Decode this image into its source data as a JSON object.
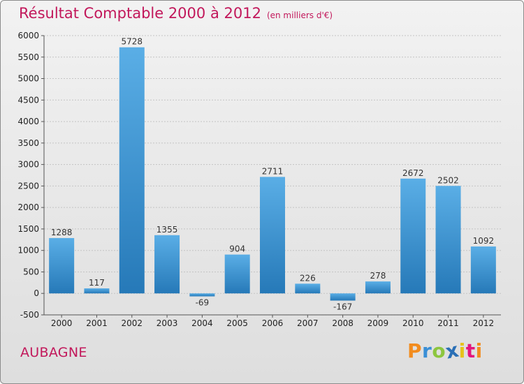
{
  "chart_data": {
    "type": "bar",
    "title": "Résultat Comptable 2000 à 2012",
    "subtitle": "(en milliers d'€)",
    "categories": [
      "2000",
      "2001",
      "2002",
      "2003",
      "2004",
      "2005",
      "2006",
      "2007",
      "2008",
      "2009",
      "2010",
      "2011",
      "2012"
    ],
    "values": [
      1288,
      117,
      5728,
      1355,
      -69,
      904,
      2711,
      226,
      -167,
      278,
      2672,
      2502,
      1092
    ],
    "ylim": [
      -500,
      6000
    ],
    "yticks": [
      -500,
      0,
      500,
      1000,
      1500,
      2000,
      2500,
      3000,
      3500,
      4000,
      4500,
      5000,
      5500,
      6000
    ],
    "xlabel": "",
    "ylabel": "",
    "grid": true,
    "bar_color_top": "#5aaee6",
    "bar_color_bottom": "#2679b8"
  },
  "location": "AUBAGNE",
  "logo": {
    "letters": [
      "P",
      "r",
      "o",
      "x",
      "i",
      "t",
      "i"
    ],
    "colors": [
      "#f28c1e",
      "#3a8fd6",
      "#8dc63f",
      "#2a6fb6",
      "#e6c21a",
      "#e4147c",
      "#f28c1e"
    ]
  }
}
